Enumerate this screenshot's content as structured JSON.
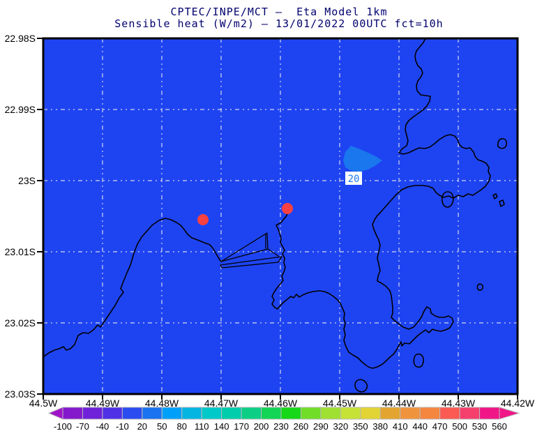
{
  "title": {
    "line1": "CPTEC/INPE/MCT —  Eta Model 1km",
    "line2": "Sensible heat (W/m2) — 13/01/2022 00UTC fct=10h"
  },
  "axes": {
    "lat_labels": [
      "22.98S",
      "22.99S",
      "23S",
      "23.01S",
      "23.02S",
      "23.03S"
    ],
    "lon_labels": [
      "44.5W",
      "44.49W",
      "44.48W",
      "44.47W",
      "44.46W",
      "44.45W",
      "44.44W",
      "44.43W",
      "44.42W"
    ]
  },
  "map_annotations": {
    "contour_label": "20"
  },
  "colorbar": {
    "tick_values": [
      "-100",
      "-70",
      "-40",
      "-10",
      "20",
      "50",
      "80",
      "110",
      "140",
      "170",
      "200",
      "230",
      "260",
      "290",
      "320",
      "350",
      "380",
      "410",
      "440",
      "470",
      "500",
      "530",
      "560"
    ],
    "colors": [
      "#a013c8",
      "#8419cc",
      "#6e21d8",
      "#5030e6",
      "#2a4cf0",
      "#1a73f0",
      "#00a0fa",
      "#05b5e1",
      "#00c9c9",
      "#00cdab",
      "#0ccf85",
      "#12d455",
      "#16d818",
      "#72dd26",
      "#a0e032",
      "#c6e236",
      "#e2d434",
      "#e3a52f",
      "#ef943d",
      "#f5863f",
      "#fa5a52",
      "#f5406e",
      "#f01687",
      "#f01687"
    ]
  },
  "colors": {
    "ocean_field": "#1e44f2",
    "contour_patch": "#1a77ee",
    "station_dot": "#fa4040",
    "title_text": "#00006e",
    "gridline": "#e8e8e8",
    "coastline": "#000000"
  },
  "chart_data": {
    "type": "heatmap",
    "title": "CPTEC/INPE/MCT — Eta Model 1km",
    "subtitle": "Sensible heat (W/m2) — 13/01/2022 00UTC fct=10h",
    "variable": "Sensible heat (W/m2)",
    "valid_time": "13/01/2022 00UTC",
    "forecast": "fct=10h",
    "x_axis": {
      "label": "longitude",
      "ticks": [
        "44.5W",
        "44.49W",
        "44.48W",
        "44.47W",
        "44.46W",
        "44.45W",
        "44.44W",
        "44.43W",
        "44.42W"
      ],
      "range": [
        -44.5,
        -44.42
      ]
    },
    "y_axis": {
      "label": "latitude",
      "ticks": [
        "22.98S",
        "22.99S",
        "23S",
        "23.01S",
        "23.02S",
        "23.03S"
      ],
      "range": [
        -23.03,
        -22.98
      ]
    },
    "grid": "dotted",
    "field": "uniform value in -10..20 W/m2 band over whole domain",
    "features": [
      {
        "name": "contour-region",
        "value": 20,
        "approx_center_lon": -44.447,
        "approx_center_lat": -22.997,
        "color_band": "20..50"
      },
      {
        "name": "station-dot-1",
        "approx_lon": -44.473,
        "approx_lat": -23.0055
      },
      {
        "name": "station-dot-2",
        "approx_lon": -44.46,
        "approx_lat": -23.004
      }
    ],
    "colorbar_ticks": [
      -100,
      -70,
      -40,
      -10,
      20,
      50,
      80,
      110,
      140,
      170,
      200,
      230,
      260,
      290,
      320,
      350,
      380,
      410,
      440,
      470,
      500,
      530,
      560
    ],
    "colorbar_orientation": "horizontal-bottom"
  }
}
